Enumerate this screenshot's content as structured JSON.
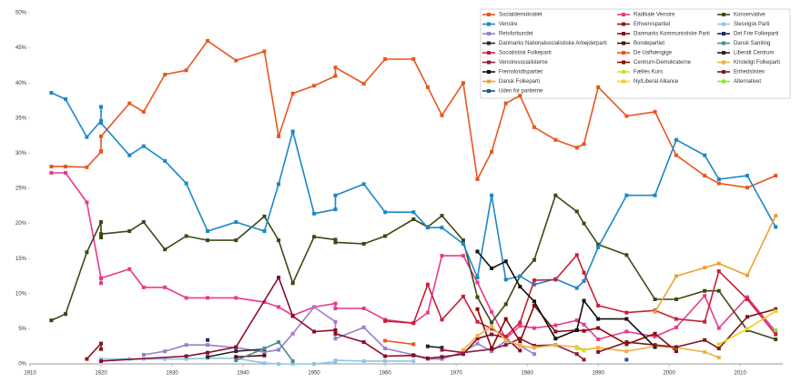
{
  "chart_data": {
    "type": "line",
    "legend": "top-right",
    "x": [
      1913,
      1915,
      1918,
      1920,
      1920,
      1920,
      1924,
      1926,
      1929,
      1932,
      1935,
      1939,
      1943,
      1945,
      1947,
      1950,
      1953,
      1953,
      1957,
      1960,
      1964,
      1966,
      1968,
      1971,
      1973,
      1975,
      1977,
      1979,
      1981,
      1984,
      1987,
      1988,
      1990,
      1994,
      1998,
      2001,
      2005,
      2007,
      2011,
      2015
    ],
    "xlim": [
      1910,
      2016
    ],
    "xticks": [
      1910,
      1920,
      1930,
      1940,
      1950,
      1960,
      1970,
      1980,
      1990,
      2000,
      2010
    ],
    "ylim": [
      0,
      50
    ],
    "yticks": [
      {
        "value": 0,
        "label": "0%"
      },
      {
        "value": 5,
        "label": "5%"
      },
      {
        "value": 10,
        "label": "10%"
      },
      {
        "value": 15,
        "label": "15%"
      },
      {
        "value": 20,
        "label": "20%"
      },
      {
        "value": 25,
        "label": "25%"
      },
      {
        "value": 30,
        "label": "30%"
      },
      {
        "value": 35,
        "label": "35%"
      },
      {
        "value": 40,
        "label": "40%"
      },
      {
        "value": 45,
        "label": "45%"
      },
      {
        "value": 50,
        "label": "50%"
      }
    ],
    "series": [
      {
        "name": "Socialdemokratiet",
        "color": "#e8551f",
        "values": [
          28.1,
          28.1,
          28.0,
          30.2,
          30.3,
          32.4,
          37.1,
          35.9,
          41.2,
          41.8,
          46.0,
          43.2,
          44.5,
          32.4,
          38.5,
          39.6,
          41.0,
          42.2,
          39.9,
          43.4,
          43.4,
          39.4,
          35.4,
          40.0,
          26.3,
          30.2,
          37.1,
          38.2,
          33.7,
          31.9,
          30.8,
          31.3,
          39.4,
          35.3,
          35.9,
          29.7,
          26.8,
          25.7,
          25.1,
          26.8
        ]
      },
      {
        "name": "Radikale Venstre",
        "color": "#e83a8c",
        "values": [
          27.2,
          27.2,
          23.0,
          12.2,
          11.5,
          12.2,
          13.5,
          10.9,
          10.9,
          9.4,
          9.4,
          9.4,
          8.8,
          8.1,
          6.9,
          8.1,
          8.6,
          7.9,
          7.9,
          6.3,
          5.8,
          7.3,
          15.4,
          15.4,
          11.6,
          7.4,
          3.6,
          5.4,
          5.1,
          5.5,
          6.2,
          5.6,
          3.5,
          4.6,
          3.9,
          5.2,
          9.7,
          5.1,
          9.5,
          4.6
        ]
      },
      {
        "name": "Konservative",
        "color": "#3b4a13",
        "values": [
          6.2,
          7.1,
          15.9,
          20.2,
          18.0,
          18.5,
          18.9,
          20.2,
          16.3,
          18.2,
          17.6,
          17.6,
          21.0,
          17.6,
          11.5,
          18.1,
          17.7,
          17.3,
          17.1,
          18.2,
          20.6,
          19.5,
          21.1,
          17.6,
          9.5,
          5.9,
          8.5,
          12.5,
          14.8,
          24.0,
          21.7,
          20.0,
          17.0,
          15.5,
          9.2,
          9.2,
          10.4,
          10.4,
          4.8,
          3.5
        ]
      },
      {
        "name": "Venstre",
        "color": "#1a87c8",
        "values": [
          38.6,
          37.7,
          32.3,
          34.6,
          36.6,
          34.3,
          29.7,
          31.0,
          28.9,
          25.7,
          18.9,
          20.2,
          18.9,
          25.6,
          33.1,
          21.4,
          22.0,
          24.0,
          25.6,
          21.6,
          21.6,
          19.4,
          19.4,
          17.1,
          12.3,
          24.0,
          12.0,
          12.5,
          11.3,
          12.1,
          10.8,
          11.8,
          16.6,
          24.0,
          24.0,
          31.9,
          29.7,
          26.3,
          26.8,
          19.5
        ]
      },
      {
        "name": "Erhvervspartiet",
        "color": "#8b1a1a",
        "x": [
          1918,
          1920,
          1920
        ],
        "values": [
          0.7,
          2.9,
          2.1
        ]
      },
      {
        "name": "Slesvigsk Parti",
        "color": "#8ec5e8",
        "x": [
          1920,
          1924,
          1926,
          1929,
          1932,
          1935,
          1939,
          1943,
          1945,
          1947,
          1950,
          1953,
          1953,
          1957,
          1960,
          1964
        ],
        "values": [
          0.7,
          0.7,
          0.7,
          0.7,
          0.7,
          0.8,
          0.8,
          0.1,
          0.0,
          0.0,
          0.0,
          0.3,
          0.5,
          0.4,
          0.4,
          0.4
        ]
      },
      {
        "name": "Retsforbundet",
        "color": "#9b7fc8",
        "x": [
          1926,
          1929,
          1932,
          1935,
          1939,
          1943,
          1945,
          1947,
          1950,
          1953,
          1953,
          1957,
          1960,
          1964,
          1966,
          1968,
          1971,
          1973,
          1975,
          1977,
          1979,
          1981
        ],
        "values": [
          1.3,
          1.8,
          2.7,
          2.7,
          2.3,
          1.7,
          2.0,
          4.3,
          8.1,
          6.0,
          3.6,
          5.2,
          2.2,
          1.3,
          0.7,
          0.7,
          1.7,
          2.9,
          1.8,
          3.3,
          2.6,
          1.4
        ]
      },
      {
        "name": "Danmarks Kommunistiske Parti",
        "color": "#8b0a2a",
        "x": [
          1920,
          1932,
          1935,
          1939,
          1945,
          1947,
          1950,
          1953,
          1953,
          1957,
          1960,
          1964,
          1966,
          1968,
          1971,
          1973,
          1975,
          1977,
          1979
        ],
        "values": [
          0.4,
          1.1,
          1.6,
          2.4,
          12.3,
          6.8,
          4.6,
          4.8,
          4.3,
          3.1,
          1.1,
          1.2,
          0.8,
          1.0,
          1.4,
          3.6,
          4.2,
          3.7,
          1.9
        ]
      },
      {
        "name": "Det Frie Folkeparti",
        "color": "#1a2a6b",
        "x": [
          1935
        ],
        "values": [
          3.4
        ]
      },
      {
        "name": "Danmarks Nationalsocialistiske Arbejderparti",
        "color": "#2a2a2a",
        "x": [
          1935,
          1939,
          1943
        ],
        "values": [
          1.0,
          1.8,
          2.1
        ]
      },
      {
        "name": "Bondepartiet",
        "color": "#5a0a0a",
        "x": [
          1939,
          1943
        ],
        "values": [
          1.0,
          1.2
        ]
      },
      {
        "name": "Dansk Samling",
        "color": "#4a8a9a",
        "x": [
          1939,
          1943,
          1945,
          1947
        ],
        "values": [
          0.5,
          2.2,
          3.1,
          0.4
        ]
      },
      {
        "name": "Socialistisk Folkeparti",
        "color": "#c8203a",
        "x": [
          1960,
          1964,
          1966,
          1968,
          1971,
          1973,
          1975,
          1977,
          1979,
          1981,
          1984,
          1987,
          1988,
          1990,
          1994,
          1998,
          2001,
          2005,
          2007,
          2011,
          2015
        ],
        "values": [
          6.1,
          5.8,
          11.3,
          6.3,
          9.6,
          6.0,
          5.0,
          3.9,
          5.9,
          11.9,
          12.0,
          15.5,
          13.0,
          8.3,
          7.3,
          7.6,
          6.4,
          6.0,
          13.2,
          9.2,
          4.2
        ]
      },
      {
        "name": "De Uafhængige",
        "color": "#e85520",
        "x": [
          1960,
          1964
        ],
        "values": [
          3.3,
          2.8
        ]
      },
      {
        "name": "Liberalt Centrum",
        "color": "#222222",
        "x": [
          1966,
          1968
        ],
        "values": [
          2.5,
          2.3
        ]
      },
      {
        "name": "Venstresocialisterne",
        "color": "#8b1a3a",
        "x": [
          1968,
          1971,
          1975,
          1977,
          1979,
          1981,
          1984,
          1987,
          1988
        ],
        "values": [
          2.0,
          1.6,
          2.1,
          2.7,
          3.6,
          2.6,
          2.7,
          1.4,
          0.6
        ]
      },
      {
        "name": "Centrum-Demokraterne",
        "color": "#8b0a0a",
        "x": [
          1973,
          1975,
          1977,
          1979,
          1981,
          1984,
          1987,
          1988,
          1990,
          1994,
          1998,
          2001
        ],
        "values": [
          7.8,
          2.2,
          6.4,
          3.2,
          8.3,
          4.6,
          4.8,
          4.7,
          5.1,
          2.8,
          4.3,
          1.8
        ]
      },
      {
        "name": "Kristeligt Folkeparti",
        "color": "#f0b040",
        "x": [
          1971,
          1973,
          1975,
          1977,
          1979,
          1981,
          1984,
          1987,
          1988,
          1990,
          1994,
          1998,
          2001,
          2005,
          2007
        ],
        "values": [
          2.0,
          4.0,
          5.3,
          3.4,
          2.6,
          2.3,
          2.7,
          2.4,
          2.0,
          2.3,
          1.8,
          2.5,
          2.3,
          1.7,
          0.9
        ]
      },
      {
        "name": "Fremskridtspartiet",
        "color": "#111111",
        "x": [
          1973,
          1975,
          1977,
          1979,
          1981,
          1984,
          1987,
          1988,
          1990,
          1994,
          1998
        ],
        "values": [
          16.0,
          13.6,
          14.6,
          11.0,
          8.9,
          3.6,
          4.8,
          9.0,
          6.4,
          6.4,
          2.4
        ]
      },
      {
        "name": "Fælles Kurs",
        "color": "#c8e820",
        "x": [
          1987,
          1988
        ],
        "values": [
          2.2,
          1.9
        ]
      },
      {
        "name": "Enhedslisten",
        "color": "#7a1a1a",
        "x": [
          1990,
          1994,
          1998,
          2001,
          2005,
          2007,
          2011,
          2015
        ],
        "values": [
          1.7,
          3.1,
          2.7,
          2.4,
          3.4,
          2.2,
          6.7,
          7.8
        ]
      },
      {
        "name": "Dansk Folkeparti",
        "color": "#f0a030",
        "x": [
          1998,
          2001,
          2005,
          2007,
          2011,
          2015
        ],
        "values": [
          7.4,
          12.5,
          13.7,
          14.3,
          12.6,
          21.1
        ]
      },
      {
        "name": "Ny/Liberal Alliance",
        "color": "#f0d020",
        "x": [
          2007,
          2011,
          2015
        ],
        "values": [
          2.8,
          5.0,
          7.5
        ]
      },
      {
        "name": "Alternativet",
        "color": "#8be830",
        "x": [
          2015
        ],
        "values": [
          4.8
        ]
      },
      {
        "name": "Uden for partierne",
        "color": "#1a5a8a",
        "x": [
          1994
        ],
        "values": [
          0.6
        ]
      }
    ]
  }
}
